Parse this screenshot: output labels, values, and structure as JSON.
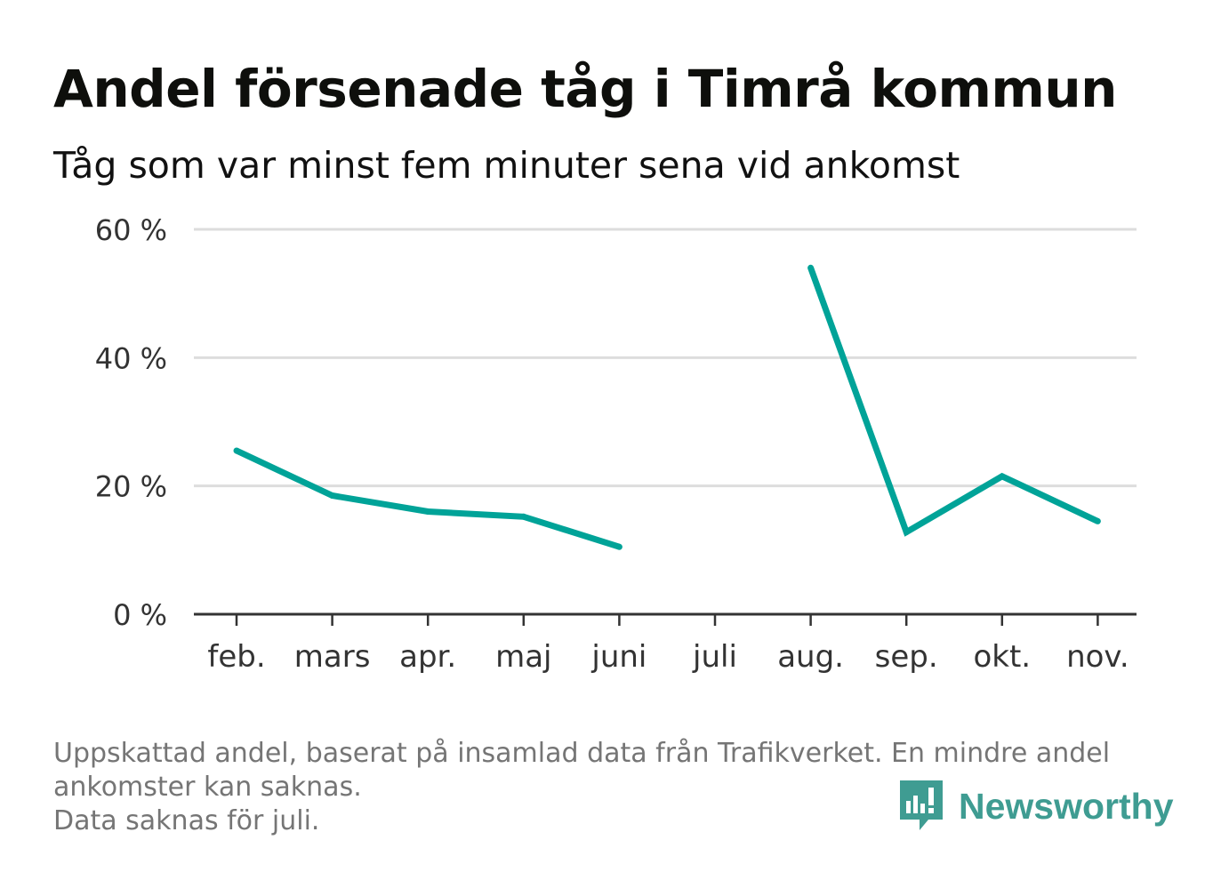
{
  "title": "Andel försenade tåg i Timrå kommun",
  "subtitle": "Tåg som var minst fem minuter sena vid ankomst",
  "footnote": {
    "line1": "Uppskattad andel, baserat på insamlad data från Trafikverket. En mindre andel",
    "line2": "ankomster kan saknas.",
    "line3": "Data saknas för juli."
  },
  "brand": {
    "name": "Newsworthy",
    "icon": "newsworthy-logo-icon",
    "color": "#3f9c92"
  },
  "colors": {
    "line": "#00a398",
    "grid": "#dddddd",
    "axis": "#333333",
    "tick_label": "#333333"
  },
  "chart_data": {
    "type": "line",
    "categories": [
      "feb.",
      "mars",
      "apr.",
      "maj",
      "juni",
      "juli",
      "aug.",
      "sep.",
      "okt.",
      "nov."
    ],
    "values": [
      25.5,
      18.5,
      16.0,
      15.2,
      10.5,
      null,
      54.0,
      12.8,
      21.5,
      14.5
    ],
    "ylim": [
      0,
      60
    ],
    "yticks": [
      0,
      20,
      40,
      60
    ],
    "ytick_labels": [
      "0 %",
      "20 %",
      "40 %",
      "60 %"
    ],
    "grid": true,
    "xlabel": "",
    "ylabel": ""
  }
}
